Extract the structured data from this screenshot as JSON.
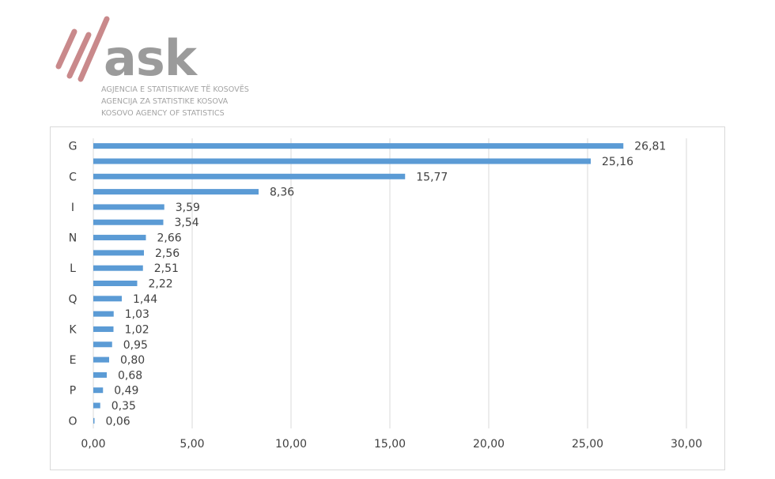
{
  "logo": {
    "word": "ask",
    "lines": [
      "AGJENCIA E STATISTIKAVE TË KOSOVËS",
      "AGENCIJA ZA STATISTIKE KOSOVA",
      "KOSOVO AGENCY OF STATISTICS"
    ]
  },
  "chart_data": {
    "type": "bar",
    "orientation": "horizontal",
    "title": "",
    "xlabel": "",
    "ylabel": "",
    "xlim": [
      0,
      30
    ],
    "x_ticks": [
      "0,00",
      "5,00",
      "10,00",
      "15,00",
      "20,00",
      "25,00",
      "30,00"
    ],
    "grid": "vertical",
    "legend": "none",
    "bar_color": "#5b9bd5",
    "categories": [
      "G",
      "",
      "C",
      "",
      "I",
      "",
      "N",
      "",
      "L",
      "",
      "Q",
      "",
      "K",
      "",
      "E",
      "",
      "P",
      "",
      "O"
    ],
    "values": [
      26.81,
      25.16,
      15.77,
      8.36,
      3.59,
      3.54,
      2.66,
      2.56,
      2.51,
      2.22,
      1.44,
      1.03,
      1.02,
      0.95,
      0.8,
      0.68,
      0.49,
      0.35,
      0.06
    ],
    "value_labels": [
      "26,81",
      "25,16",
      "15,77",
      "8,36",
      "3,59",
      "3,54",
      "2,66",
      "2,56",
      "2,51",
      "2,22",
      "1,44",
      "1,03",
      "1,02",
      "0,95",
      "0,80",
      "0,68",
      "0,49",
      "0,35",
      "0,06"
    ]
  }
}
